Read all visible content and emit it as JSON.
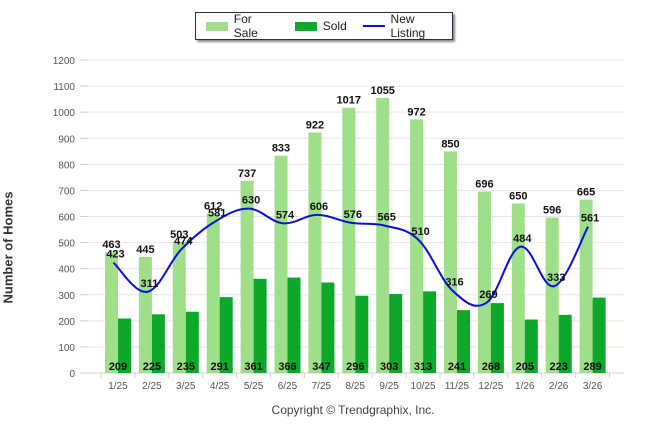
{
  "chart_data": {
    "type": "bar",
    "title": "",
    "xlabel": "",
    "ylabel": "Number of Homes",
    "ylim": [
      0,
      1200
    ],
    "yticks": [
      0,
      100,
      200,
      300,
      400,
      500,
      600,
      700,
      800,
      900,
      1000,
      1100,
      1200
    ],
    "grid": true,
    "legend_position": "top-center",
    "categories": [
      "1/25",
      "2/25",
      "3/25",
      "4/25",
      "5/25",
      "6/25",
      "7/25",
      "8/25",
      "9/25",
      "10/25",
      "11/25",
      "12/25",
      "1/26",
      "2/26",
      "3/26"
    ],
    "series": [
      {
        "name": "For Sale",
        "kind": "bar",
        "color": "#a0df8a",
        "values": [
          463,
          445,
          503,
          612,
          737,
          833,
          922,
          1017,
          1055,
          972,
          850,
          696,
          650,
          596,
          665
        ]
      },
      {
        "name": "Sold",
        "kind": "bar",
        "color": "#0ca829",
        "values": [
          209,
          225,
          235,
          291,
          361,
          366,
          347,
          296,
          303,
          313,
          241,
          268,
          205,
          223,
          289
        ]
      },
      {
        "name": "New Listing",
        "kind": "line",
        "color": "#0a10d6",
        "values": [
          423,
          311,
          474,
          581,
          630,
          574,
          606,
          576,
          565,
          510,
          316,
          269,
          484,
          333,
          561
        ]
      }
    ]
  },
  "legend": {
    "for_sale": "For Sale",
    "sold": "Sold",
    "new_listing": "New Listing"
  },
  "footer": {
    "copyright": "Copyright © Trendgraphix, Inc."
  }
}
